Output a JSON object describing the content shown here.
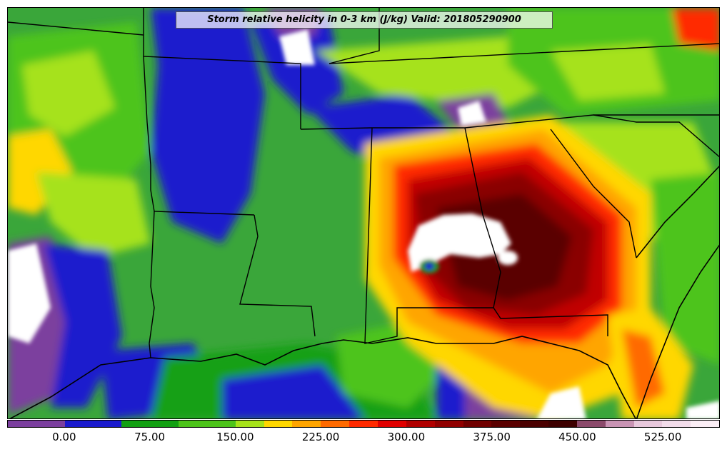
{
  "title": "Storm relative helicity in 0-3 km (J/kg) Valid: 201805290900",
  "colorbar": {
    "colors": [
      "#7b3f9e",
      "#7b3f9e",
      "#1a1acd",
      "#1a1acd",
      "#12a012",
      "#12a012",
      "#4dc41a",
      "#4dc41a",
      "#a6e21a",
      "#ffd700",
      "#ffa500",
      "#ff6a00",
      "#ff2a00",
      "#e00000",
      "#b00000",
      "#900000",
      "#700000",
      "#5a0000",
      "#4a0000",
      "#3d0000",
      "#8b4a6b",
      "#c994b4",
      "#e8c8dc",
      "#f2dcea",
      "#fbeef5"
    ],
    "ticks": [
      {
        "label": "0.00",
        "value": 0
      },
      {
        "label": "75.00",
        "value": 75
      },
      {
        "label": "150.00",
        "value": 150
      },
      {
        "label": "225.00",
        "value": 225
      },
      {
        "label": "300.00",
        "value": 300
      },
      {
        "label": "375.00",
        "value": 375
      },
      {
        "label": "450.00",
        "value": 450
      },
      {
        "label": "525.00",
        "value": 525
      }
    ],
    "range": [
      -50,
      575
    ]
  }
}
